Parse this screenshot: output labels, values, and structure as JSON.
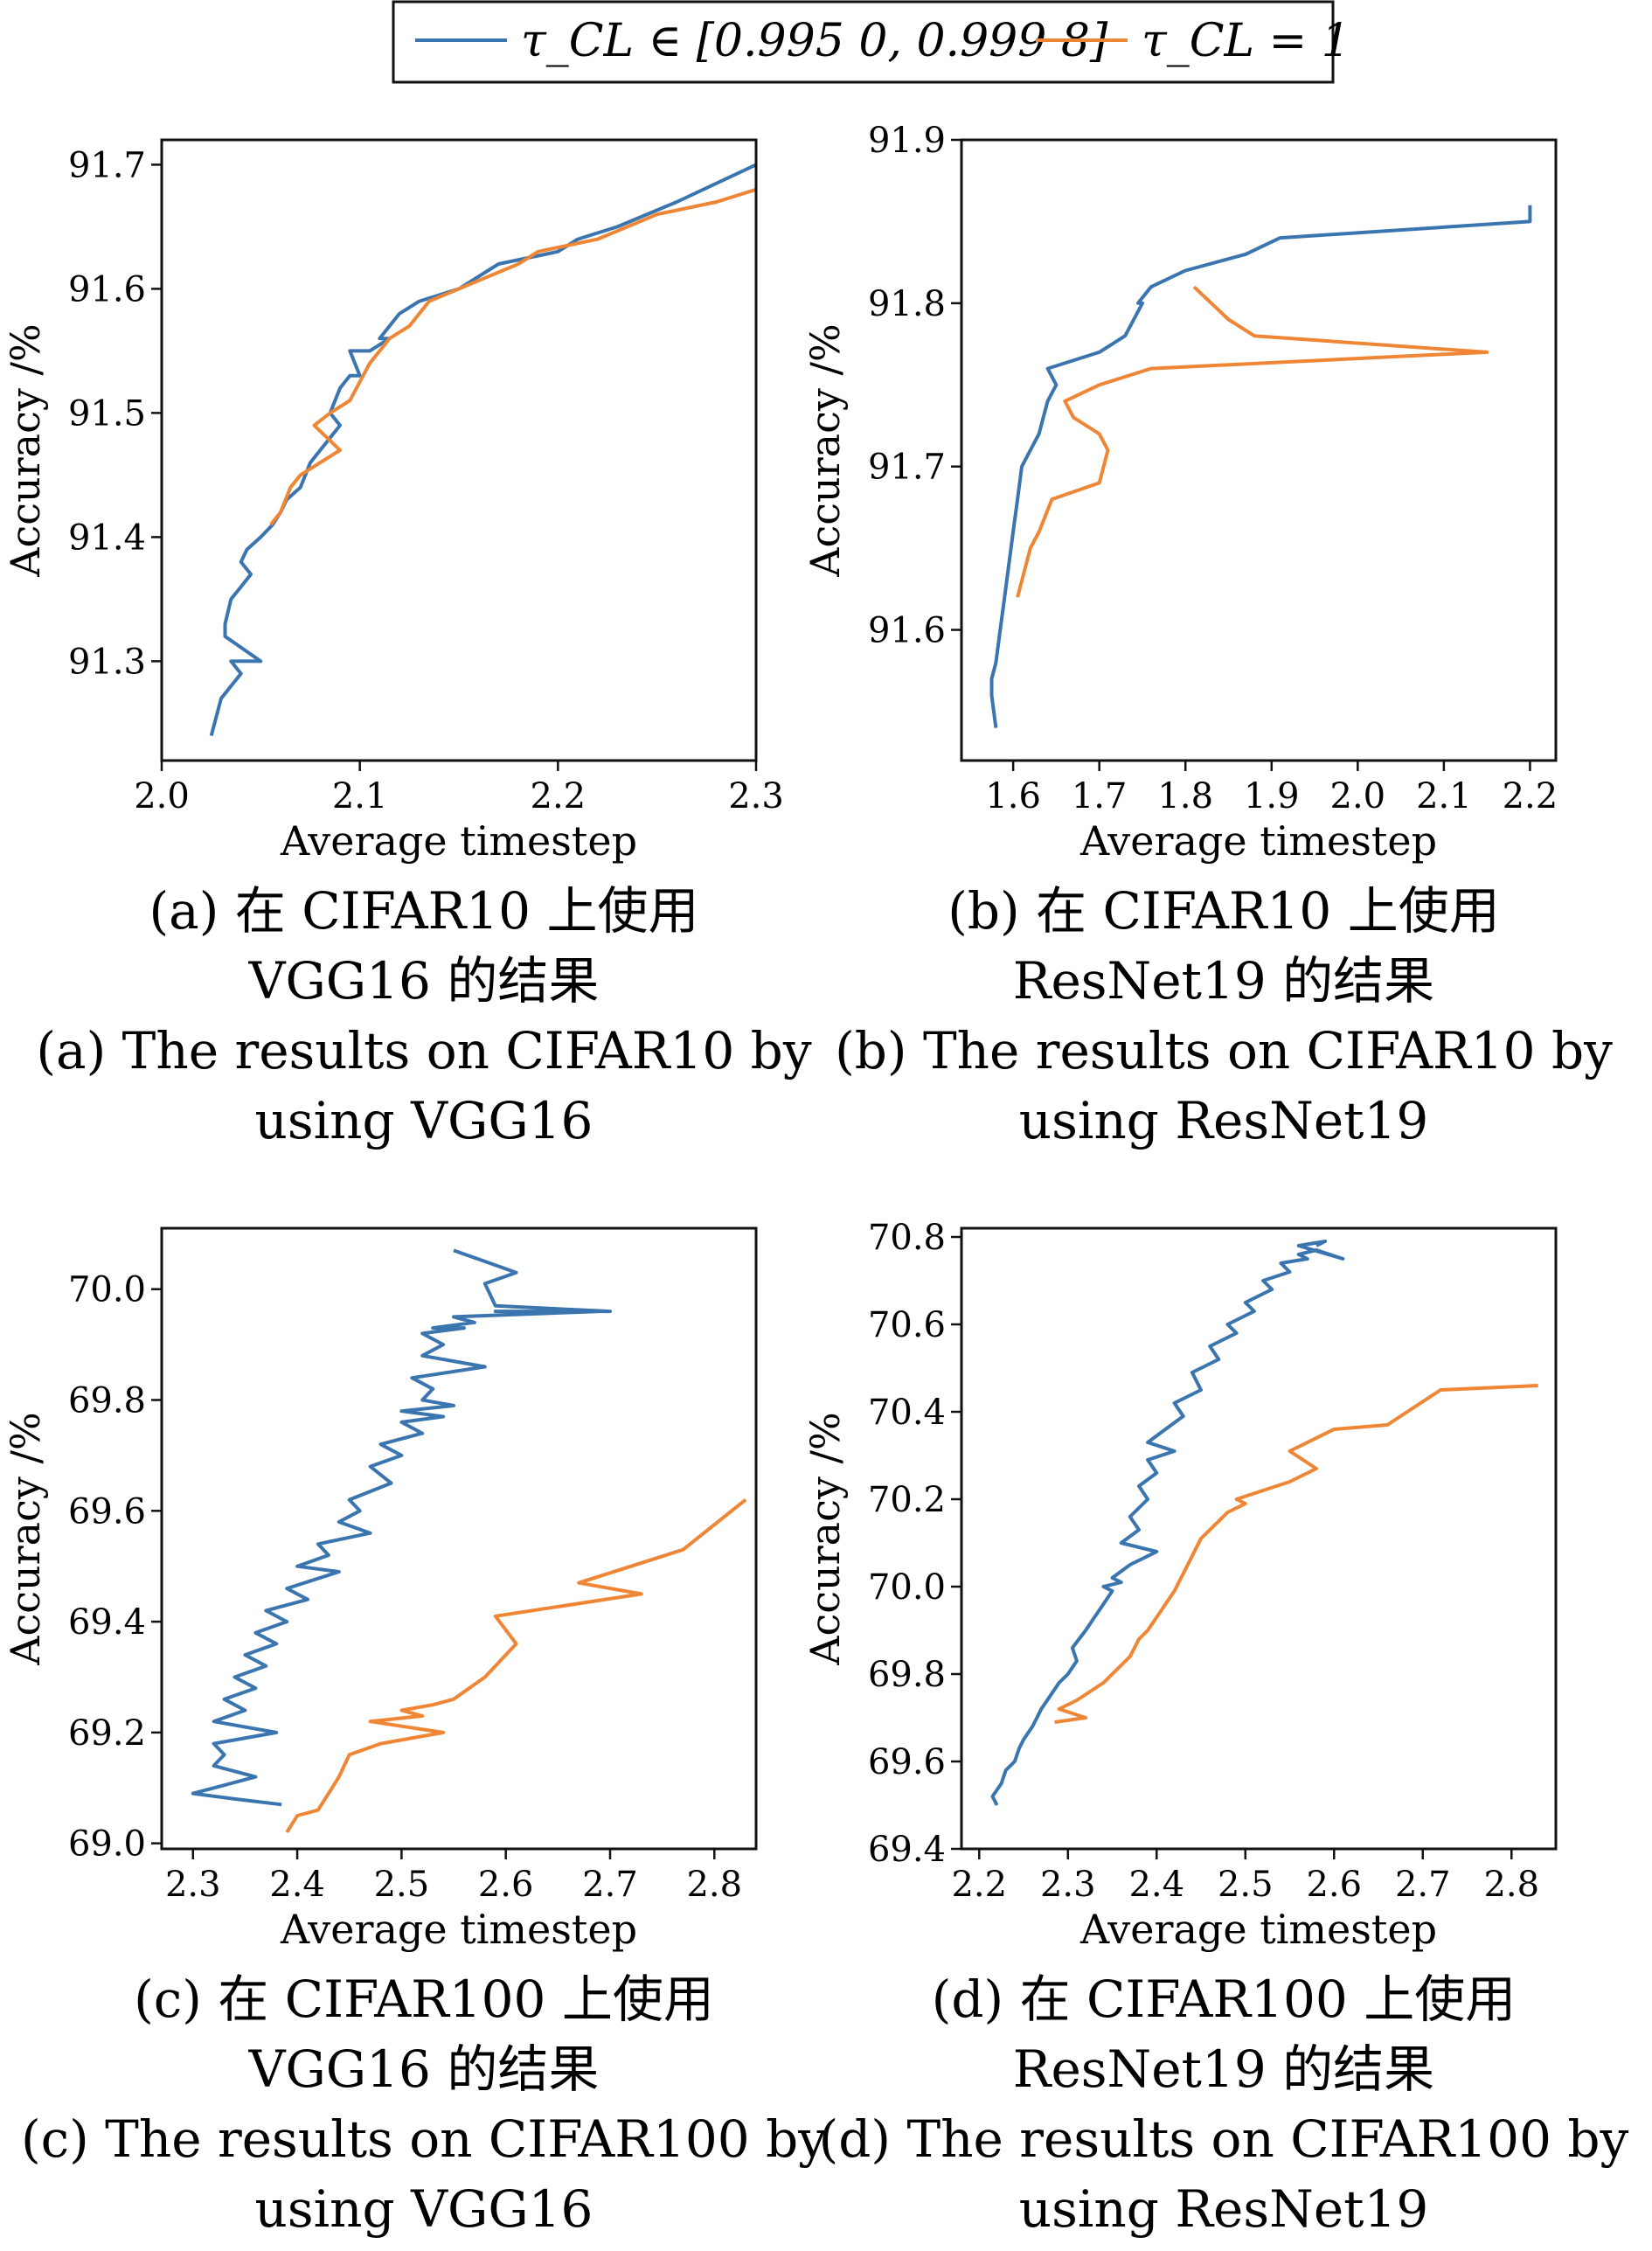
{
  "legend": {
    "entries": [
      {
        "label": "τ_CL ∈ [0.995 0, 0.999 8]",
        "color": "#3b75af"
      },
      {
        "label": "τ_CL = 1",
        "color": "#ef8636"
      }
    ]
  },
  "chart_data": [
    {
      "id": "a",
      "type": "line",
      "xlabel": "Average timestep",
      "ylabel": "Accuracy /%",
      "xlim": [
        2.0,
        2.3
      ],
      "ylim": [
        91.22,
        91.72
      ],
      "xticks": [
        "2.0",
        "2.1",
        "2.2",
        "2.3"
      ],
      "yticks": [
        "91.3",
        "91.4",
        "91.5",
        "91.6",
        "91.7"
      ],
      "caption_zh": [
        "(a) 在 CIFAR10 上使用",
        "VGG16 的结果"
      ],
      "caption_en": [
        "(a) The results on CIFAR10 by",
        "using VGG16"
      ],
      "series": [
        {
          "color": "#3b75af",
          "x": [
            2.025,
            2.03,
            2.035,
            2.04,
            2.035,
            2.05,
            2.032,
            2.032,
            2.035,
            2.04,
            2.045,
            2.04,
            2.043,
            2.05,
            2.056,
            2.06,
            2.063,
            2.07,
            2.075,
            2.08,
            2.085,
            2.09,
            2.085,
            2.09,
            2.095,
            2.1,
            2.095,
            2.105,
            2.115,
            2.11,
            2.12,
            2.13,
            2.15,
            2.16,
            2.17,
            2.2,
            2.21,
            2.23,
            2.26,
            2.3
          ],
          "y": [
            91.24,
            91.27,
            91.28,
            91.29,
            91.3,
            91.3,
            91.32,
            91.33,
            91.35,
            91.36,
            91.37,
            91.38,
            91.39,
            91.4,
            91.41,
            91.42,
            91.43,
            91.44,
            91.46,
            91.47,
            91.48,
            91.49,
            91.5,
            91.52,
            91.53,
            91.53,
            91.55,
            91.55,
            91.56,
            91.56,
            91.58,
            91.59,
            91.6,
            91.61,
            91.62,
            91.63,
            91.64,
            91.65,
            91.67,
            91.7
          ]
        },
        {
          "color": "#ef8636",
          "x": [
            2.055,
            2.06,
            2.065,
            2.07,
            2.08,
            2.09,
            2.077,
            2.085,
            2.095,
            2.105,
            2.115,
            2.125,
            2.135,
            2.15,
            2.165,
            2.18,
            2.19,
            2.22,
            2.25,
            2.28,
            2.3
          ],
          "y": [
            91.41,
            91.42,
            91.44,
            91.45,
            91.46,
            91.47,
            91.49,
            91.5,
            91.51,
            91.54,
            91.56,
            91.57,
            91.59,
            91.6,
            91.61,
            91.62,
            91.63,
            91.64,
            91.66,
            91.67,
            91.68
          ]
        }
      ]
    },
    {
      "id": "b",
      "type": "line",
      "xlabel": "Average timestep",
      "ylabel": "Accuracy /%",
      "xlim": [
        1.54,
        2.23
      ],
      "ylim": [
        91.52,
        91.9
      ],
      "xticks": [
        "1.6",
        "1.7",
        "1.8",
        "1.9",
        "2.0",
        "2.1",
        "2.2"
      ],
      "yticks": [
        "91.6",
        "91.7",
        "91.8",
        "91.9"
      ],
      "caption_zh": [
        "(b) 在 CIFAR10 上使用",
        "ResNet19 的结果"
      ],
      "caption_en": [
        "(b) The results on CIFAR10 by",
        "using ResNet19"
      ],
      "series": [
        {
          "color": "#3b75af",
          "x": [
            1.58,
            1.575,
            1.575,
            1.58,
            1.585,
            1.59,
            1.595,
            1.6,
            1.605,
            1.61,
            1.62,
            1.63,
            1.635,
            1.64,
            1.645,
            1.65,
            1.64,
            1.7,
            1.73,
            1.74,
            1.75,
            1.745,
            1.76,
            1.8,
            1.87,
            1.91,
            2.2,
            2.2
          ],
          "y": [
            91.54,
            91.56,
            91.57,
            91.58,
            91.6,
            91.62,
            91.64,
            91.66,
            91.68,
            91.7,
            91.71,
            91.72,
            91.73,
            91.74,
            91.745,
            91.75,
            91.76,
            91.77,
            91.78,
            91.79,
            91.8,
            91.8,
            91.81,
            91.82,
            91.83,
            91.84,
            91.85,
            91.86
          ]
        },
        {
          "color": "#ef8636",
          "x": [
            1.605,
            1.61,
            1.62,
            1.63,
            1.645,
            1.7,
            1.71,
            1.7,
            1.67,
            1.66,
            1.7,
            1.76,
            2.15,
            1.88,
            1.85,
            1.83,
            1.81
          ],
          "y": [
            91.62,
            91.63,
            91.65,
            91.66,
            91.68,
            91.69,
            91.71,
            91.72,
            91.73,
            91.74,
            91.75,
            91.76,
            91.77,
            91.78,
            91.79,
            91.8,
            91.81
          ]
        }
      ]
    },
    {
      "id": "c",
      "type": "line",
      "xlabel": "Average timestep",
      "ylabel": "Accuracy /%",
      "xlim": [
        2.27,
        2.84
      ],
      "ylim": [
        68.99,
        70.11
      ],
      "xticks": [
        "2.3",
        "2.4",
        "2.5",
        "2.6",
        "2.7",
        "2.8"
      ],
      "yticks": [
        "69.0",
        "69.2",
        "69.4",
        "69.6",
        "69.8",
        "70.0"
      ],
      "caption_zh": [
        "(c) 在 CIFAR100 上使用",
        "VGG16 的结果"
      ],
      "caption_en": [
        "(c) The results on CIFAR100 by",
        "using VGG16"
      ],
      "series": [
        {
          "color": "#3b75af",
          "x": [
            2.385,
            2.34,
            2.3,
            2.32,
            2.36,
            2.32,
            2.33,
            2.32,
            2.38,
            2.32,
            2.35,
            2.33,
            2.36,
            2.34,
            2.37,
            2.35,
            2.38,
            2.36,
            2.39,
            2.37,
            2.41,
            2.39,
            2.44,
            2.4,
            2.43,
            2.42,
            2.47,
            2.44,
            2.46,
            2.45,
            2.49,
            2.47,
            2.5,
            2.48,
            2.52,
            2.5,
            2.54,
            2.5,
            2.55,
            2.52,
            2.53,
            2.51,
            2.58,
            2.52,
            2.54,
            2.52,
            2.56,
            2.53,
            2.57,
            2.55,
            2.69,
            2.59,
            2.7,
            2.59,
            2.58,
            2.61,
            2.58,
            2.55
          ],
          "y": [
            69.07,
            69.08,
            69.09,
            69.1,
            69.12,
            69.14,
            69.16,
            69.18,
            69.2,
            69.22,
            69.24,
            69.26,
            69.28,
            69.3,
            69.32,
            69.34,
            69.36,
            69.38,
            69.4,
            69.42,
            69.44,
            69.46,
            69.49,
            69.5,
            69.52,
            69.54,
            69.56,
            69.58,
            69.6,
            69.62,
            69.65,
            69.68,
            69.7,
            69.72,
            69.74,
            69.76,
            69.77,
            69.78,
            69.79,
            69.8,
            69.82,
            69.84,
            69.86,
            69.88,
            69.9,
            69.92,
            69.93,
            69.93,
            69.94,
            69.95,
            69.96,
            69.96,
            69.96,
            69.97,
            70.01,
            70.03,
            70.05,
            70.07
          ]
        },
        {
          "color": "#ef8636",
          "x": [
            2.39,
            2.4,
            2.42,
            2.44,
            2.45,
            2.48,
            2.54,
            2.47,
            2.52,
            2.5,
            2.53,
            2.55,
            2.58,
            2.61,
            2.59,
            2.73,
            2.67,
            2.77,
            2.83
          ],
          "y": [
            69.02,
            69.05,
            69.06,
            69.12,
            69.16,
            69.18,
            69.2,
            69.22,
            69.23,
            69.24,
            69.25,
            69.26,
            69.3,
            69.36,
            69.41,
            69.45,
            69.47,
            69.53,
            69.62
          ]
        }
      ]
    },
    {
      "id": "d",
      "type": "line",
      "xlabel": "Average timestep",
      "ylabel": "Accuracy /%",
      "xlim": [
        2.18,
        2.85
      ],
      "ylim": [
        69.4,
        70.82
      ],
      "xticks": [
        "2.2",
        "2.3",
        "2.4",
        "2.5",
        "2.6",
        "2.7",
        "2.8"
      ],
      "yticks": [
        "69.4",
        "69.6",
        "69.8",
        "70.0",
        "70.2",
        "70.4",
        "70.6",
        "70.8"
      ],
      "caption_zh": [
        "(d) 在 CIFAR100 上使用",
        "ResNet19 的结果"
      ],
      "caption_en": [
        "(d) The results on CIFAR100 by",
        "using ResNet19"
      ],
      "series": [
        {
          "color": "#3b75af",
          "x": [
            2.22,
            2.215,
            2.225,
            2.23,
            2.24,
            2.245,
            2.25,
            2.26,
            2.265,
            2.27,
            2.28,
            2.29,
            2.3,
            2.31,
            2.305,
            2.32,
            2.33,
            2.34,
            2.35,
            2.34,
            2.36,
            2.35,
            2.37,
            2.4,
            2.36,
            2.38,
            2.37,
            2.39,
            2.38,
            2.4,
            2.39,
            2.42,
            2.39,
            2.41,
            2.43,
            2.42,
            2.45,
            2.44,
            2.47,
            2.46,
            2.49,
            2.48,
            2.51,
            2.5,
            2.53,
            2.52,
            2.55,
            2.54,
            2.57,
            2.56,
            2.58,
            2.61,
            2.56,
            2.59,
            2.58
          ],
          "y": [
            69.5,
            69.52,
            69.55,
            69.58,
            69.6,
            69.63,
            69.65,
            69.68,
            69.7,
            69.72,
            69.75,
            69.78,
            69.8,
            69.83,
            69.86,
            69.9,
            69.93,
            69.96,
            69.99,
            70.0,
            70.01,
            70.02,
            70.05,
            70.08,
            70.1,
            70.13,
            70.16,
            70.2,
            70.23,
            70.26,
            70.29,
            70.31,
            70.33,
            70.36,
            70.39,
            70.42,
            70.45,
            70.49,
            70.52,
            70.55,
            70.58,
            70.6,
            70.63,
            70.65,
            70.68,
            70.7,
            70.72,
            70.74,
            70.75,
            70.76,
            70.77,
            70.75,
            70.78,
            70.79,
            70.78
          ]
        },
        {
          "color": "#ef8636",
          "x": [
            2.285,
            2.32,
            2.29,
            2.31,
            2.34,
            2.37,
            2.38,
            2.39,
            2.4,
            2.41,
            2.42,
            2.44,
            2.45,
            2.48,
            2.5,
            2.49,
            2.55,
            2.58,
            2.55,
            2.6,
            2.66,
            2.72,
            2.83
          ],
          "y": [
            69.69,
            69.7,
            69.72,
            69.74,
            69.78,
            69.84,
            69.88,
            69.9,
            69.93,
            69.96,
            69.99,
            70.07,
            70.11,
            70.17,
            70.19,
            70.2,
            70.24,
            70.27,
            70.31,
            70.36,
            70.37,
            70.45,
            70.46
          ]
        }
      ]
    }
  ]
}
